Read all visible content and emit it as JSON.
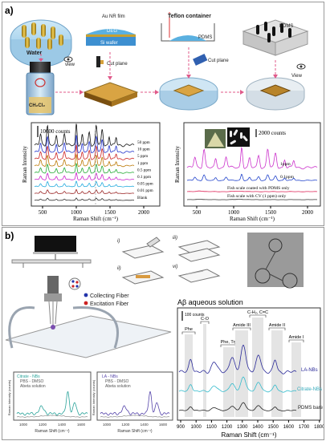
{
  "panel_a": {
    "label": "a)",
    "schematic": {
      "water": "Water",
      "view1": "view",
      "ch2cl2": "CH₂Cl₂",
      "au_film": "Au NR film",
      "deg": "DEG",
      "si_wafer": "Si wafer",
      "cut_plane1": "Cut plane",
      "teflon": "Teflon container",
      "pdms1": "PDMS",
      "cut_plane2": "Cut plane",
      "pdms2": "PDMS",
      "view2": "View"
    },
    "left_chart": {
      "scale_label": "10000 counts",
      "ylabel": "Raman Intensity",
      "xlabel": "Raman Shift (cm⁻¹)",
      "xticks": [
        "500",
        "1000",
        "1500",
        "2000"
      ],
      "legend": [
        "50 ppm",
        "10 ppm",
        "5 ppm",
        "1 ppm",
        "0.5 ppm",
        "0.1 ppm",
        "0.05 ppm",
        "0.01 ppm",
        "Blank"
      ],
      "colors": [
        "#111111",
        "#2233cc",
        "#cc2222",
        "#bb7700",
        "#22aa33",
        "#cc22cc",
        "#22aadd",
        "#992222",
        "#333333"
      ]
    },
    "right_chart": {
      "scale_label": "2000 counts",
      "ylabel": "Raman Intensity",
      "xlabel": "Raman Shift (cm⁻¹)",
      "xticks": [
        "500",
        "1000",
        "1500",
        "2000"
      ],
      "legend": [
        "1ppm",
        "0.1ppm",
        "Fish scale coated with PDMS only",
        "Fish scale with CV (1 ppm) only"
      ],
      "colors": [
        "#cc33cc",
        "#2244cc",
        "#dd2255",
        "#333333"
      ]
    }
  },
  "panel_b": {
    "label": "b)",
    "steps": [
      "i)",
      "ii)",
      "iii)",
      "vi)"
    ],
    "collecting_fiber": "Collecting Fiber",
    "excitation_fiber": "Excitation Fiber",
    "collecting_color": "#2233aa",
    "excitation_color": "#cc2222",
    "inset1": {
      "legend": [
        "Citrate - NBs",
        "PBS - DMSO",
        "Abeta solution"
      ],
      "ylabel": "Raman Intensity (counts)",
      "xlabel": "Raman Shift (cm⁻¹)",
      "xticks": [
        "1000",
        "1200",
        "1400",
        "1600"
      ]
    },
    "inset2": {
      "legend": [
        "LA - NBs",
        "PBS - DMSO",
        "Abeta solution"
      ],
      "ylabel": "Raman Intensity (counts)",
      "xlabel": "Raman Shift (cm⁻¹)",
      "xticks": [
        "1000",
        "1200",
        "1400",
        "1600"
      ]
    },
    "main_chart": {
      "title": "Aβ aqueous solution",
      "scale_label": "100 counts",
      "xlabel": "Raman Shift (cm⁻¹)",
      "xticks": [
        "900",
        "1000",
        "1100",
        "1200",
        "1300",
        "1400",
        "1500",
        "1600",
        "1700",
        "1800"
      ],
      "bands": [
        "Phe",
        "C-O",
        "Phe, Trp",
        "Amide III",
        "C-H₂, C=C",
        "Amide II",
        "Amide I"
      ],
      "series_labels": [
        "LA-NBs",
        "Citrate-NBs",
        "PDMS bare"
      ],
      "colors": [
        "#2a2a99",
        "#33bbcc",
        "#222222"
      ]
    }
  }
}
